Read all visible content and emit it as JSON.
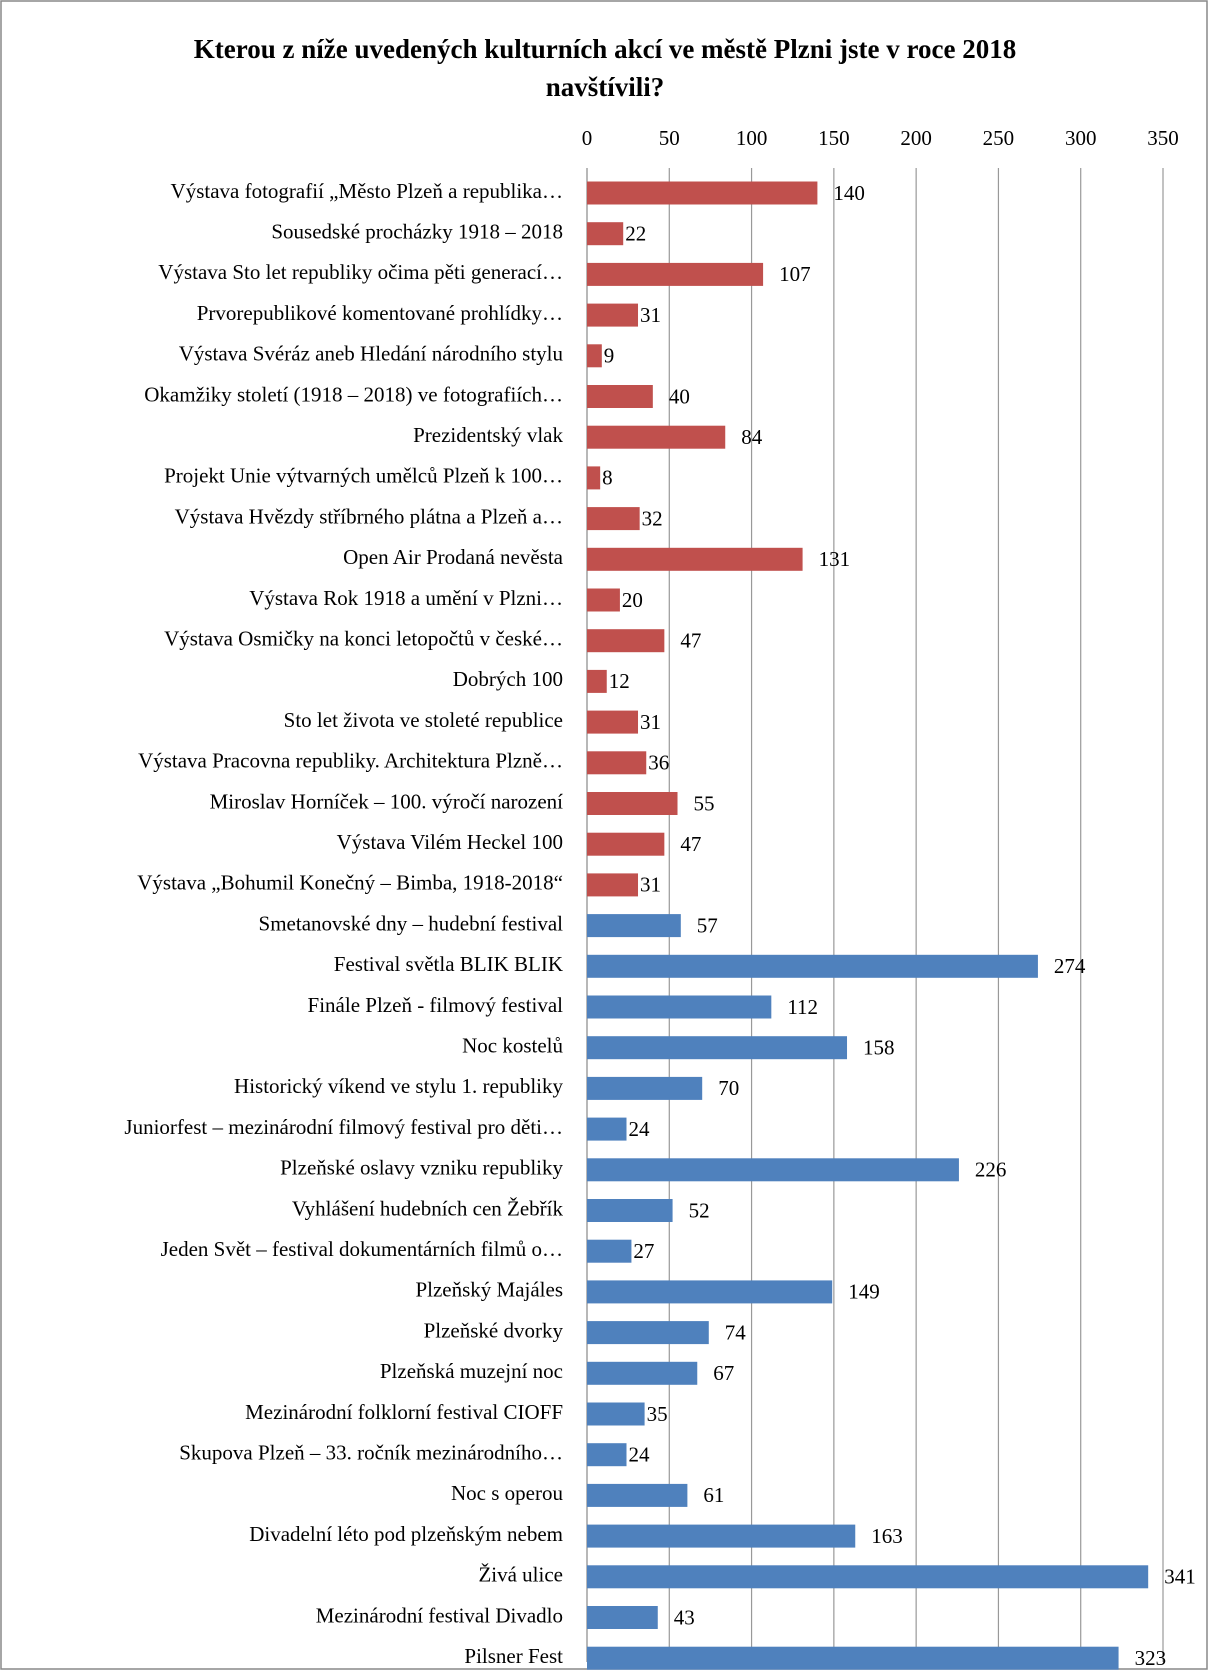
{
  "chart_data": {
    "type": "barh",
    "title": "Kterou z níže uvedených kulturních akcí ve městě Plzni jste v roce 2018 navštívili?",
    "categories": [
      "Výstava fotografií „Město Plzeň a republika…",
      "Sousedské procházky 1918 – 2018",
      "Výstava Sto let republiky očima pěti generací…",
      "Prvorepublikové komentované prohlídky…",
      "Výstava Svéráz aneb Hledání národního stylu",
      "Okamžiky století (1918 – 2018) ve fotografiích…",
      "Prezidentský vlak",
      "Projekt Unie výtvarných umělců Plzeň k 100…",
      "Výstava Hvězdy stříbrného plátna a Plzeň a…",
      "Open Air Prodaná nevěsta",
      "Výstava Rok 1918 a umění v Plzni…",
      "Výstava Osmičky na konci letopočtů v české…",
      "Dobrých 100",
      "Sto let života ve stoleté republice",
      "Výstava Pracovna republiky. Architektura Plzně…",
      "Miroslav Horníček – 100. výročí narození",
      "Výstava Vilém Heckel 100",
      "Výstava „Bohumil Konečný – Bimba, 1918-2018“",
      "Smetanovské dny – hudební festival",
      "Festival světla BLIK BLIK",
      "Finále Plzeň - filmový festival",
      "Noc kostelů",
      "Historický víkend ve stylu 1. republiky",
      "Juniorfest – mezinárodní filmový festival pro děti…",
      "Plzeňské oslavy vzniku republiky",
      "Vyhlášení hudebních cen Žebřík",
      "Jeden Svět – festival dokumentárních filmů o…",
      "Plzeňský Majáles",
      "Plzeňské dvorky",
      "Plzeňská muzejní noc",
      "Mezinárodní folklorní festival CIOFF",
      "Skupova Plzeň – 33. ročník mezinárodního…",
      "Noc s operou",
      "Divadelní léto pod plzeňským nebem",
      "Živá ulice",
      "Mezinárodní festival Divadlo",
      "Pilsner Fest"
    ],
    "values": [
      140,
      22,
      107,
      31,
      9,
      40,
      84,
      8,
      32,
      131,
      20,
      47,
      12,
      31,
      36,
      55,
      47,
      31,
      57,
      274,
      112,
      158,
      70,
      24,
      226,
      52,
      27,
      149,
      74,
      67,
      35,
      24,
      61,
      163,
      341,
      43,
      323
    ],
    "colors": [
      "#c0504d",
      "#c0504d",
      "#c0504d",
      "#c0504d",
      "#c0504d",
      "#c0504d",
      "#c0504d",
      "#c0504d",
      "#c0504d",
      "#c0504d",
      "#c0504d",
      "#c0504d",
      "#c0504d",
      "#c0504d",
      "#c0504d",
      "#c0504d",
      "#c0504d",
      "#c0504d",
      "#4f81bd",
      "#4f81bd",
      "#4f81bd",
      "#4f81bd",
      "#4f81bd",
      "#4f81bd",
      "#4f81bd",
      "#4f81bd",
      "#4f81bd",
      "#4f81bd",
      "#4f81bd",
      "#4f81bd",
      "#4f81bd",
      "#4f81bd",
      "#4f81bd",
      "#4f81bd",
      "#4f81bd",
      "#4f81bd",
      "#4f81bd"
    ],
    "xlim": [
      0,
      350
    ],
    "xticks": [
      0,
      50,
      100,
      150,
      200,
      250,
      300,
      350
    ],
    "grid": true
  }
}
